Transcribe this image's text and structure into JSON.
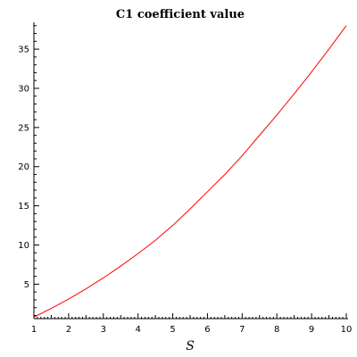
{
  "chart_data": {
    "type": "line",
    "title": "C1 coefficient value",
    "xlabel": "S",
    "ylabel": "",
    "xlim": [
      1,
      10
    ],
    "ylim": [
      0.6,
      38.2
    ],
    "xticks": [
      1,
      2,
      3,
      4,
      5,
      6,
      7,
      8,
      9,
      10
    ],
    "yticks": [
      5,
      10,
      15,
      20,
      25,
      30,
      35
    ],
    "grid": false,
    "legend": "none",
    "series": [
      {
        "color": "#ff0000",
        "x": [
          1,
          1.5,
          2,
          2.5,
          3,
          3.5,
          4,
          4.5,
          5,
          5.5,
          6,
          6.5,
          7,
          7.5,
          8,
          8.5,
          9,
          9.5,
          10
        ],
        "y": [
          0.8,
          1.9,
          3.1,
          4.4,
          5.8,
          7.3,
          8.9,
          10.6,
          12.5,
          14.6,
          16.8,
          19.0,
          21.4,
          24.0,
          26.6,
          29.3,
          32.1,
          35.0,
          38.0
        ]
      }
    ]
  }
}
